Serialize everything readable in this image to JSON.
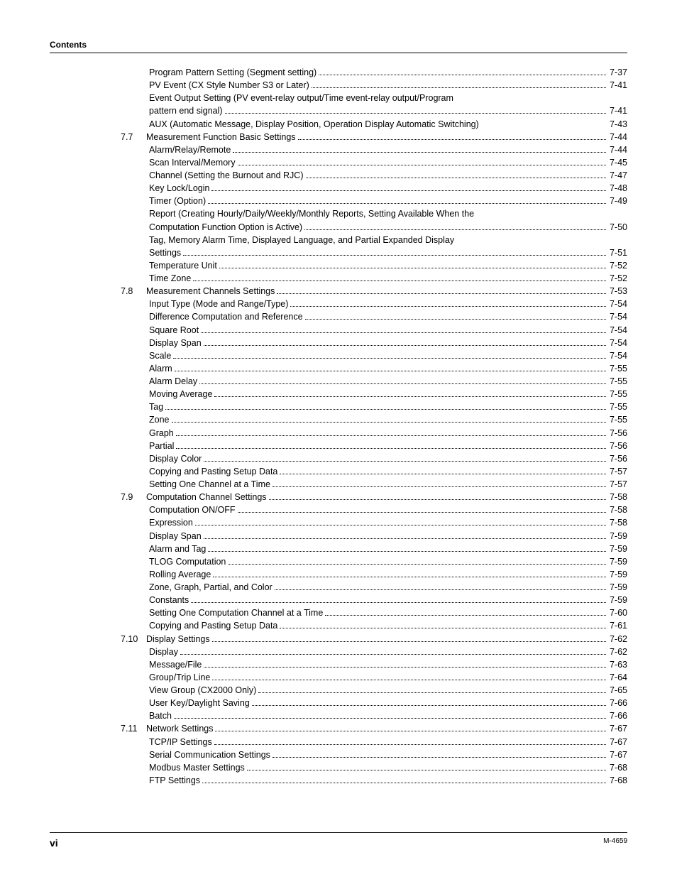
{
  "header": {
    "label": "Contents"
  },
  "footer": {
    "page_number": "vi",
    "doc_id": "M-4659"
  },
  "toc": {
    "rows": [
      {
        "level": 2,
        "num": "",
        "label": "Program Pattern Setting (Segment setting)",
        "page": "7-37",
        "dots": true,
        "cont": false
      },
      {
        "level": 2,
        "num": "",
        "label": "PV Event (CX Style Number S3 or Later)",
        "page": "7-41",
        "dots": true,
        "cont": false
      },
      {
        "level": 2,
        "num": "",
        "label": "Event Output Setting (PV event-relay output/Time event-relay output/Program",
        "page": "",
        "dots": false,
        "cont": false
      },
      {
        "level": 2,
        "num": "",
        "label": "pattern end signal)",
        "page": "7-41",
        "dots": true,
        "cont": true
      },
      {
        "level": 2,
        "num": "",
        "label": "AUX (Automatic Message, Display Position, Operation Display Automatic Switching)",
        "page": "7-43",
        "dots": false,
        "cont": false,
        "tight": true
      },
      {
        "level": 1,
        "num": "7.7",
        "label": "Measurement Function Basic Settings",
        "page": "7-44",
        "dots": true,
        "cont": false
      },
      {
        "level": 2,
        "num": "",
        "label": "Alarm/Relay/Remote",
        "page": "7-44",
        "dots": true,
        "cont": false
      },
      {
        "level": 2,
        "num": "",
        "label": "Scan Interval/Memory",
        "page": "7-45",
        "dots": true,
        "cont": false
      },
      {
        "level": 2,
        "num": "",
        "label": "Channel (Setting the Burnout and RJC)",
        "page": "7-47",
        "dots": true,
        "cont": false
      },
      {
        "level": 2,
        "num": "",
        "label": "Key Lock/Login",
        "page": "7-48",
        "dots": true,
        "cont": false
      },
      {
        "level": 2,
        "num": "",
        "label": "Timer (Option)",
        "page": "7-49",
        "dots": true,
        "cont": false
      },
      {
        "level": 2,
        "num": "",
        "label": "Report (Creating Hourly/Daily/Weekly/Monthly Reports, Setting Available When the",
        "page": "",
        "dots": false,
        "cont": false
      },
      {
        "level": 2,
        "num": "",
        "label": "Computation Function Option is Active)",
        "page": "7-50",
        "dots": true,
        "cont": true
      },
      {
        "level": 2,
        "num": "",
        "label": "Tag, Memory Alarm Time, Displayed Language, and Partial Expanded Display",
        "page": "",
        "dots": false,
        "cont": false
      },
      {
        "level": 2,
        "num": "",
        "label": "Settings",
        "page": "7-51",
        "dots": true,
        "cont": true
      },
      {
        "level": 2,
        "num": "",
        "label": "Temperature Unit",
        "page": "7-52",
        "dots": true,
        "cont": false
      },
      {
        "level": 2,
        "num": "",
        "label": "Time Zone",
        "page": "7-52",
        "dots": true,
        "cont": false
      },
      {
        "level": 1,
        "num": "7.8",
        "label": "Measurement Channels Settings",
        "page": "7-53",
        "dots": true,
        "cont": false
      },
      {
        "level": 2,
        "num": "",
        "label": "Input Type (Mode and Range/Type)",
        "page": "7-54",
        "dots": true,
        "cont": false
      },
      {
        "level": 2,
        "num": "",
        "label": "Difference Computation and Reference",
        "page": "7-54",
        "dots": true,
        "cont": false
      },
      {
        "level": 2,
        "num": "",
        "label": "Square Root",
        "page": "7-54",
        "dots": true,
        "cont": false
      },
      {
        "level": 2,
        "num": "",
        "label": "Display Span",
        "page": "7-54",
        "dots": true,
        "cont": false
      },
      {
        "level": 2,
        "num": "",
        "label": "Scale",
        "page": "7-54",
        "dots": true,
        "cont": false
      },
      {
        "level": 2,
        "num": "",
        "label": "Alarm",
        "page": "7-55",
        "dots": true,
        "cont": false
      },
      {
        "level": 2,
        "num": "",
        "label": "Alarm Delay",
        "page": "7-55",
        "dots": true,
        "cont": false
      },
      {
        "level": 2,
        "num": "",
        "label": "Moving Average",
        "page": "7-55",
        "dots": true,
        "cont": false
      },
      {
        "level": 2,
        "num": "",
        "label": "Tag",
        "page": "7-55",
        "dots": true,
        "cont": false
      },
      {
        "level": 2,
        "num": "",
        "label": "Zone",
        "page": "7-55",
        "dots": true,
        "cont": false
      },
      {
        "level": 2,
        "num": "",
        "label": "Graph",
        "page": "7-56",
        "dots": true,
        "cont": false
      },
      {
        "level": 2,
        "num": "",
        "label": "Partial",
        "page": "7-56",
        "dots": true,
        "cont": false
      },
      {
        "level": 2,
        "num": "",
        "label": "Display Color",
        "page": "7-56",
        "dots": true,
        "cont": false
      },
      {
        "level": 2,
        "num": "",
        "label": "Copying and Pasting Setup Data",
        "page": "7-57",
        "dots": true,
        "cont": false
      },
      {
        "level": 2,
        "num": "",
        "label": "Setting One Channel at a Time",
        "page": "7-57",
        "dots": true,
        "cont": false
      },
      {
        "level": 1,
        "num": "7.9",
        "label": "Computation Channel Settings",
        "page": "7-58",
        "dots": true,
        "cont": false
      },
      {
        "level": 2,
        "num": "",
        "label": "Computation ON/OFF",
        "page": "7-58",
        "dots": true,
        "cont": false
      },
      {
        "level": 2,
        "num": "",
        "label": "Expression",
        "page": "7-58",
        "dots": true,
        "cont": false
      },
      {
        "level": 2,
        "num": "",
        "label": "Display Span",
        "page": "7-59",
        "dots": true,
        "cont": false
      },
      {
        "level": 2,
        "num": "",
        "label": "Alarm and Tag",
        "page": "7-59",
        "dots": true,
        "cont": false
      },
      {
        "level": 2,
        "num": "",
        "label": "TLOG Computation",
        "page": "7-59",
        "dots": true,
        "cont": false
      },
      {
        "level": 2,
        "num": "",
        "label": "Rolling Average",
        "page": "7-59",
        "dots": true,
        "cont": false
      },
      {
        "level": 2,
        "num": "",
        "label": "Zone, Graph, Partial, and Color",
        "page": "7-59",
        "dots": true,
        "cont": false
      },
      {
        "level": 2,
        "num": "",
        "label": "Constants",
        "page": "7-59",
        "dots": true,
        "cont": false
      },
      {
        "level": 2,
        "num": "",
        "label": "Setting One Computation Channel at a Time",
        "page": "7-60",
        "dots": true,
        "cont": false
      },
      {
        "level": 2,
        "num": "",
        "label": "Copying and Pasting Setup Data",
        "page": "7-61",
        "dots": true,
        "cont": false
      },
      {
        "level": 1,
        "num": "7.10",
        "label": "Display Settings",
        "page": "7-62",
        "dots": true,
        "cont": false
      },
      {
        "level": 2,
        "num": "",
        "label": "Display",
        "page": "7-62",
        "dots": true,
        "cont": false
      },
      {
        "level": 2,
        "num": "",
        "label": "Message/File",
        "page": "7-63",
        "dots": true,
        "cont": false
      },
      {
        "level": 2,
        "num": "",
        "label": "Group/Trip Line",
        "page": "7-64",
        "dots": true,
        "cont": false
      },
      {
        "level": 2,
        "num": "",
        "label": "View Group (CX2000 Only)",
        "page": "7-65",
        "dots": true,
        "cont": false
      },
      {
        "level": 2,
        "num": "",
        "label": "User Key/Daylight Saving",
        "page": "7-66",
        "dots": true,
        "cont": false
      },
      {
        "level": 2,
        "num": "",
        "label": "Batch",
        "page": "7-66",
        "dots": true,
        "cont": false
      },
      {
        "level": 1,
        "num": "7.11",
        "label": "Network Settings",
        "page": "7-67",
        "dots": true,
        "cont": false
      },
      {
        "level": 2,
        "num": "",
        "label": "TCP/IP Settings",
        "page": "7-67",
        "dots": true,
        "cont": false
      },
      {
        "level": 2,
        "num": "",
        "label": "Serial Communication Settings",
        "page": "7-67",
        "dots": true,
        "cont": false
      },
      {
        "level": 2,
        "num": "",
        "label": "Modbus Master Settings",
        "page": "7-68",
        "dots": true,
        "cont": false
      },
      {
        "level": 2,
        "num": "",
        "label": "FTP Settings",
        "page": "7-68",
        "dots": true,
        "cont": false
      }
    ]
  }
}
